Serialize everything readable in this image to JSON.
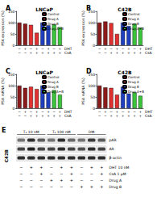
{
  "chart_data": [
    {
      "type": "bar",
      "title": "A",
      "subtitle": "LNCaP",
      "y_label": "PSA expression (%)",
      "categories": [
        "−\n−",
        "+\n−",
        "−\n+",
        "+\n+",
        "−\n+",
        "+\n+",
        "−\n+",
        "+\n+"
      ],
      "row_labels": [
        "DHT",
        "CsA"
      ],
      "series": [
        {
          "name": "Control",
          "color": "#8b1a1a",
          "values": [
            100,
            95,
            null,
            null,
            null,
            null,
            null,
            null
          ]
        },
        {
          "name": "Drug A",
          "color": "#e03030",
          "values": [
            null,
            null,
            90,
            55,
            null,
            null,
            null,
            null
          ]
        },
        {
          "name": "Drug B",
          "color": "#1f3fbf",
          "values": [
            null,
            null,
            null,
            null,
            100,
            88,
            null,
            null
          ]
        },
        {
          "name": "Drug A+B",
          "color": "#3cc43c",
          "values": [
            null,
            null,
            null,
            null,
            null,
            null,
            92,
            80
          ]
        }
      ],
      "ylim": [
        0,
        150
      ],
      "yticks": [
        0,
        50,
        100,
        150
      ],
      "legend": "upper right"
    },
    {
      "type": "bar",
      "title": "B",
      "subtitle": "C42B",
      "y_label": "PSA expression (%)",
      "categories": [
        "−\n−",
        "+\n−",
        "−\n+",
        "+\n+",
        "−\n+",
        "+\n+",
        "−\n+",
        "+\n+"
      ],
      "row_labels": [
        "DHT",
        "CsA"
      ],
      "series": [
        {
          "name": "Control",
          "color": "#8b1a1a",
          "values": [
            100,
            105,
            null,
            null,
            null,
            null,
            null,
            null
          ]
        },
        {
          "name": "Drug A",
          "color": "#e03030",
          "values": [
            null,
            null,
            98,
            50,
            null,
            null,
            null,
            null
          ]
        },
        {
          "name": "Drug B",
          "color": "#1f3fbf",
          "values": [
            null,
            null,
            null,
            null,
            100,
            85,
            null,
            null
          ]
        },
        {
          "name": "Drug A+B",
          "color": "#3cc43c",
          "values": [
            null,
            null,
            null,
            null,
            null,
            null,
            95,
            78
          ]
        }
      ],
      "ylim": [
        0,
        150
      ],
      "yticks": [
        0,
        50,
        100,
        150
      ],
      "legend": "upper right"
    },
    {
      "type": "bar",
      "title": "C",
      "subtitle": "LNCaP",
      "y_label": "PSA mRNA (%)",
      "categories": [
        "−\n−",
        "+\n−",
        "−\n+",
        "+\n+",
        "−\n+",
        "+\n+",
        "−\n+",
        "+\n+"
      ],
      "row_labels": [
        "DHT",
        "CsA"
      ],
      "series": [
        {
          "name": "Control",
          "color": "#8b1a1a",
          "values": [
            100,
            90,
            null,
            null,
            null,
            null,
            null,
            null
          ]
        },
        {
          "name": "Drug A",
          "color": "#e03030",
          "values": [
            null,
            null,
            95,
            85,
            null,
            null,
            null,
            null
          ]
        },
        {
          "name": "Drug B",
          "color": "#1f3fbf",
          "values": [
            null,
            null,
            null,
            null,
            100,
            70,
            null,
            null
          ]
        },
        {
          "name": "Drug A+B",
          "color": "#3cc43c",
          "values": [
            null,
            null,
            null,
            null,
            null,
            null,
            80,
            60
          ]
        }
      ],
      "ylim": [
        0,
        150
      ],
      "yticks": [
        0,
        50,
        100,
        150
      ],
      "legend": "upper right"
    },
    {
      "type": "bar",
      "title": "D",
      "subtitle": "C42B",
      "y_label": "PSA mRNA (%)",
      "categories": [
        "−\n−",
        "+\n−",
        "−\n+",
        "+\n+",
        "−\n+",
        "+\n+",
        "−\n+",
        "+\n+"
      ],
      "row_labels": [
        "DHT",
        "CsA"
      ],
      "series": [
        {
          "name": "Control",
          "color": "#8b1a1a",
          "values": [
            100,
            92,
            null,
            null,
            null,
            null,
            null,
            null
          ]
        },
        {
          "name": "Drug A",
          "color": "#e03030",
          "values": [
            null,
            null,
            90,
            60,
            null,
            null,
            null,
            null
          ]
        },
        {
          "name": "Drug B",
          "color": "#1f3fbf",
          "values": [
            null,
            null,
            null,
            null,
            95,
            65,
            null,
            null
          ]
        },
        {
          "name": "Drug A+B",
          "color": "#3cc43c",
          "values": [
            null,
            null,
            null,
            null,
            null,
            null,
            70,
            55
          ]
        }
      ],
      "ylim": [
        0,
        150
      ],
      "yticks": [
        0,
        50,
        100,
        150
      ],
      "legend": "upper right"
    }
  ],
  "blot": {
    "title": "E",
    "cell_line": "C42B",
    "groups": [
      "T₃ 10 nM",
      "T₃ 100 nM",
      "DM"
    ],
    "bands": [
      {
        "label": "pAR",
        "intensity": [
          0.5,
          0.8,
          0.6,
          0.5,
          0.8,
          0.55,
          0.5,
          0.75,
          0.6
        ]
      },
      {
        "label": "AR",
        "intensity": [
          0.7,
          0.85,
          0.7,
          0.7,
          0.8,
          0.7,
          0.65,
          0.8,
          0.7
        ]
      },
      {
        "label": "β-actin",
        "intensity": [
          0.8,
          0.8,
          0.8,
          0.8,
          0.8,
          0.8,
          0.8,
          0.8,
          0.8
        ]
      }
    ],
    "conditions": [
      {
        "label": "DHT 10 nM",
        "marks": [
          "−",
          "+",
          "+",
          "−",
          "+",
          "+",
          "−",
          "+",
          "+"
        ]
      },
      {
        "label": "CsA 1 µM",
        "marks": [
          "−",
          "−",
          "+",
          "−",
          "−",
          "+",
          "−",
          "−",
          "+"
        ]
      },
      {
        "label": "Drug A",
        "marks": [
          "−",
          "−",
          "−",
          "+",
          "+",
          "+",
          "−",
          "−",
          "−"
        ]
      },
      {
        "label": "Drug B",
        "marks": [
          "−",
          "−",
          "−",
          "−",
          "−",
          "−",
          "+",
          "+",
          "+"
        ]
      }
    ]
  }
}
